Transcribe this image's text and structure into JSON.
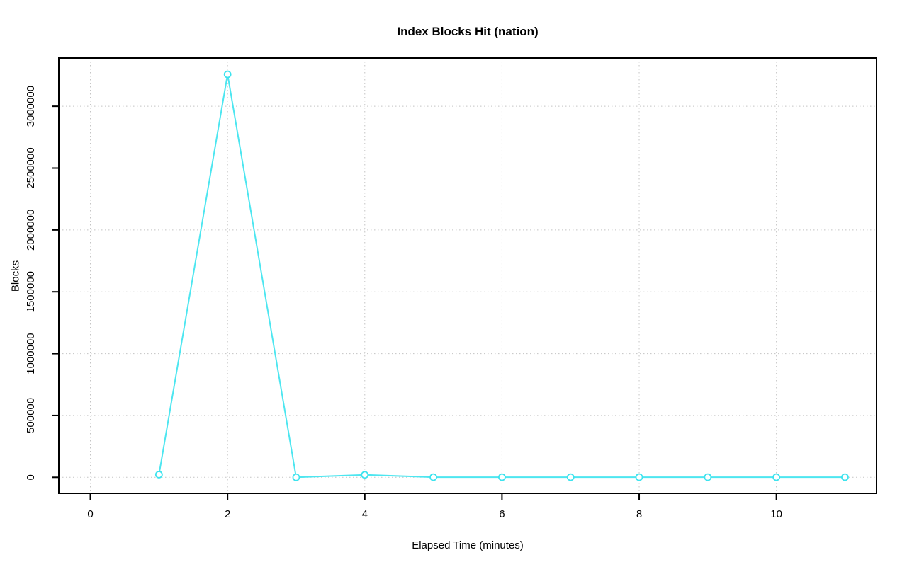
{
  "chart_data": {
    "type": "line",
    "title": "Index Blocks Hit (nation)",
    "xlabel": "Elapsed Time (minutes)",
    "ylabel": "Blocks",
    "x": [
      1,
      2,
      3,
      4,
      5,
      6,
      7,
      8,
      9,
      10,
      11
    ],
    "values": [
      22000,
      3258000,
      0,
      20000,
      1000,
      1000,
      1000,
      1000,
      1000,
      1000,
      1000
    ],
    "xlim": [
      -0.46,
      11.46
    ],
    "ylim": [
      -130000,
      3390000
    ],
    "xticks": [
      0,
      2,
      4,
      6,
      8,
      10
    ],
    "xtick_labels": [
      "0",
      "2",
      "4",
      "6",
      "8",
      "10"
    ],
    "yticks": [
      0,
      500000,
      1000000,
      1500000,
      2000000,
      2500000,
      3000000
    ],
    "ytick_labels": [
      "0",
      "500000",
      "1000000",
      "1500000",
      "2000000",
      "2500000",
      "3000000"
    ],
    "grid": "dotted",
    "legend": "none",
    "marker": "open-circle",
    "colors": {
      "line": "#4de6f0",
      "marker_stroke": "#3ce3ee",
      "marker_fill": "#ffffff",
      "grid": "#c3c3c3",
      "frame": "#000000",
      "text": "#000000"
    }
  }
}
